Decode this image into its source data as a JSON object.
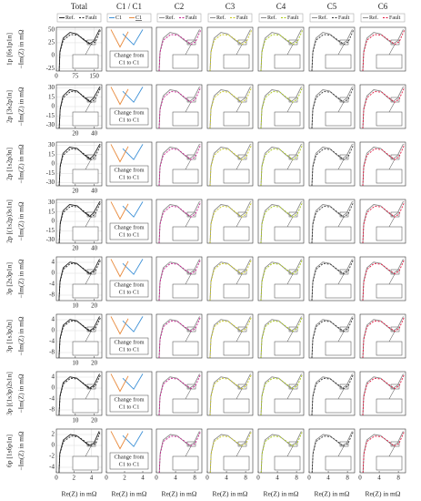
{
  "columns": [
    "Total",
    "C1 / C1",
    "C2",
    "C3",
    "C4",
    "C5",
    "C6"
  ],
  "legend": {
    "ref": "Ref.",
    "fault": "Fault",
    "c1": "C1",
    "c1_new": "C1"
  },
  "colors": {
    "total": "#222222",
    "ref": "#8a8a8a",
    "c1": "#3a8fd6",
    "c1_new": "#e8893a",
    "ci": [
      "#c41e8c",
      "#c8c81e",
      "#a8c814",
      "#333333",
      "#e0143c"
    ]
  },
  "x_label": "Re(Z) in mΩ",
  "y_label": "−Im(Z) in mΩ",
  "annotation": [
    "Change from",
    "C1 to C1"
  ],
  "c1": {
    "xlim": [
      0,
      5
    ],
    "ylim": [
      -5,
      5
    ],
    "xticks": [
      0,
      2,
      4
    ],
    "old": {
      "x": [
        1.8,
        3,
        4
      ],
      "y": [
        3.5,
        1,
        4.5
      ]
    },
    "new": {
      "x": [
        0.5,
        1.5,
        2.4
      ],
      "y": [
        4.5,
        0.5,
        4
      ]
    }
  },
  "rows": [
    {
      "label": "1p [6s1p1n]",
      "total": {
        "xlim": [
          0,
          180
        ],
        "ylim": [
          -30,
          55
        ],
        "xticks": [
          0,
          75,
          150
        ],
        "yticks": [
          50,
          25,
          0,
          -25
        ],
        "ref": {
          "x": [
            11,
            14,
            27,
            54,
            81,
            108,
            130,
            148,
            171
          ],
          "y": [
            -30,
            8,
            34,
            45,
            42,
            31,
            23,
            28,
            51
          ]
        },
        "fault": {
          "x": [
            11,
            14,
            27,
            56,
            85,
            114,
            137,
            155,
            175
          ],
          "y": [
            -30,
            6,
            30,
            41,
            40,
            30,
            22,
            27,
            50
          ]
        }
      },
      "ci": {
        "xlim": [
          0,
          40
        ],
        "ylim": [
          -30,
          55
        ],
        "ref": {
          "x": [
            2.4,
            3.2,
            6,
            12,
            18,
            24,
            28.8,
            32.8,
            38
          ],
          "y": [
            -30,
            8,
            34,
            45,
            42,
            31,
            23,
            28,
            51
          ]
        },
        "fault": {
          "x": [
            2.4,
            3.2,
            6,
            12.5,
            19,
            25.5,
            30.5,
            34.5,
            39
          ],
          "y": [
            -30,
            6,
            30,
            41,
            40,
            30,
            22,
            27,
            50
          ]
        }
      }
    },
    {
      "label": "2p [3s2p1n]",
      "total": {
        "xlim": [
          0,
          48
        ],
        "ylim": [
          -35,
          35
        ],
        "xticks": [
          20,
          40
        ],
        "yticks": [
          30,
          15,
          0,
          -15,
          -30
        ],
        "ref": {
          "x": [
            3,
            4,
            7,
            14,
            22,
            29,
            35,
            39,
            46
          ],
          "y": [
            -35,
            -3,
            17,
            27,
            25,
            15,
            8,
            13,
            32
          ]
        },
        "fault": {
          "x": [
            3,
            4,
            7,
            15,
            23,
            31,
            37,
            41,
            47
          ],
          "y": [
            -35,
            -5,
            14,
            24,
            23,
            14,
            7,
            12,
            31
          ]
        }
      },
      "ci": {
        "xlim": [
          0,
          20
        ],
        "ylim": [
          -35,
          35
        ],
        "ref": {
          "x": [
            1.2,
            1.6,
            3,
            6,
            9,
            12,
            14.4,
            16.4,
            19
          ],
          "y": [
            -35,
            -3,
            17,
            27,
            25,
            15,
            8,
            13,
            32
          ]
        },
        "fault": {
          "x": [
            1.2,
            1.6,
            3,
            6.3,
            9.5,
            12.7,
            15.2,
            17.2,
            19.5
          ],
          "y": [
            -35,
            -5,
            14,
            24,
            23,
            14,
            7,
            12,
            31
          ]
        }
      }
    },
    {
      "label": "2p [1s2p3n]",
      "total": {
        "xlim": [
          0,
          48
        ],
        "ylim": [
          -35,
          35
        ],
        "xticks": [
          20,
          40
        ],
        "yticks": [
          30,
          15,
          0,
          -15,
          -30
        ],
        "ref": {
          "x": [
            3,
            4,
            7,
            14,
            22,
            29,
            35,
            39,
            46
          ],
          "y": [
            -35,
            -3,
            17,
            27,
            25,
            15,
            8,
            13,
            32
          ]
        },
        "fault": {
          "x": [
            3,
            4,
            7,
            15,
            23,
            31,
            37,
            41,
            47
          ],
          "y": [
            -35,
            -5,
            14,
            24,
            23,
            14,
            7,
            12,
            31
          ]
        }
      },
      "ci": {
        "xlim": [
          0,
          20
        ],
        "ylim": [
          -35,
          35
        ],
        "ref": {
          "x": [
            1.2,
            1.6,
            3,
            6,
            9,
            12,
            14.4,
            16.4,
            19
          ],
          "y": [
            -35,
            -3,
            17,
            27,
            25,
            15,
            8,
            13,
            32
          ]
        },
        "fault": {
          "x": [
            1.2,
            1.6,
            3,
            6.3,
            9.5,
            12.7,
            15.2,
            17.2,
            19.5
          ],
          "y": [
            -35,
            -5,
            14,
            24,
            23,
            14,
            7,
            12,
            31
          ]
        }
      }
    },
    {
      "label": "2p [(1s2p)3s1n]",
      "total": {
        "xlim": [
          0,
          48
        ],
        "ylim": [
          -35,
          35
        ],
        "xticks": [
          20,
          40
        ],
        "yticks": [
          30,
          15,
          0,
          -15,
          -30
        ],
        "ref": {
          "x": [
            3,
            4,
            7,
            14,
            22,
            29,
            35,
            39,
            46
          ],
          "y": [
            -35,
            -3,
            17,
            27,
            25,
            15,
            8,
            13,
            32
          ]
        },
        "fault": {
          "x": [
            3,
            4,
            7,
            15,
            23,
            31,
            37,
            41,
            47
          ],
          "y": [
            -35,
            -5,
            14,
            24,
            23,
            14,
            7,
            12,
            31
          ]
        }
      },
      "ci": {
        "xlim": [
          0,
          20
        ],
        "ylim": [
          -35,
          35
        ],
        "ref": {
          "x": [
            1.2,
            1.6,
            3,
            6,
            9,
            12,
            14.4,
            16.4,
            19
          ],
          "y": [
            -35,
            -3,
            17,
            27,
            25,
            15,
            8,
            13,
            32
          ]
        },
        "fault": {
          "x": [
            1.2,
            1.6,
            3,
            6.3,
            9.5,
            12.7,
            15.2,
            17.2,
            19.5
          ],
          "y": [
            -35,
            -5,
            14,
            24,
            23,
            14,
            7,
            12,
            31
          ]
        }
      }
    },
    {
      "label": "3p [2s3p1n]",
      "total": {
        "xlim": [
          0,
          24
        ],
        "ylim": [
          -10,
          6
        ],
        "xticks": [
          10,
          20
        ],
        "yticks": [
          4,
          0,
          -4,
          -8
        ],
        "ref": {
          "x": [
            1.4,
            1.9,
            3.6,
            7.2,
            10.8,
            14.4,
            17.3,
            19.7,
            22.8
          ],
          "y": [
            -10,
            -2.8,
            2,
            4.1,
            3.6,
            1.5,
            -0.1,
            0.9,
            5.2
          ]
        },
        "fault": {
          "x": [
            1.4,
            1.9,
            3.6,
            7.5,
            11.3,
            15.1,
            18.1,
            20.6,
            23.4
          ],
          "y": [
            -10,
            -3.3,
            1.4,
            3.6,
            3.3,
            1.3,
            -0.2,
            0.8,
            5
          ]
        }
      },
      "ci": {
        "xlim": [
          0,
          10
        ],
        "ylim": [
          -10,
          6
        ],
        "ref": {
          "x": [
            0.6,
            0.8,
            1.5,
            3,
            4.5,
            6,
            7.2,
            8.2,
            9.5
          ],
          "y": [
            -10,
            -2.8,
            2,
            4.1,
            3.6,
            1.5,
            -0.1,
            0.9,
            5.2
          ]
        },
        "fault": {
          "x": [
            0.6,
            0.8,
            1.5,
            3.1,
            4.7,
            6.3,
            7.6,
            8.6,
            9.7
          ],
          "y": [
            -10,
            -3.3,
            1.4,
            3.6,
            3.3,
            1.3,
            -0.2,
            0.8,
            5
          ]
        }
      }
    },
    {
      "label": "3p [1s3p2n]",
      "total": {
        "xlim": [
          0,
          24
        ],
        "ylim": [
          -10,
          6
        ],
        "xticks": [
          10,
          20
        ],
        "yticks": [
          4,
          0,
          -4,
          -8
        ],
        "ref": {
          "x": [
            1.4,
            1.9,
            3.6,
            7.2,
            10.8,
            14.4,
            17.3,
            19.7,
            22.8
          ],
          "y": [
            -10,
            -2.8,
            2,
            4.1,
            3.6,
            1.5,
            -0.1,
            0.9,
            5.2
          ]
        },
        "fault": {
          "x": [
            1.4,
            1.9,
            3.6,
            7.5,
            11.3,
            15.1,
            18.1,
            20.6,
            23.4
          ],
          "y": [
            -10,
            -3.3,
            1.4,
            3.6,
            3.3,
            1.3,
            -0.2,
            0.8,
            5
          ]
        }
      },
      "ci": {
        "xlim": [
          0,
          10
        ],
        "ylim": [
          -10,
          6
        ],
        "ref": {
          "x": [
            0.6,
            0.8,
            1.5,
            3,
            4.5,
            6,
            7.2,
            8.2,
            9.5
          ],
          "y": [
            -10,
            -2.8,
            2,
            4.1,
            3.6,
            1.5,
            -0.1,
            0.9,
            5.2
          ]
        },
        "fault": {
          "x": [
            0.6,
            0.8,
            1.5,
            3.1,
            4.7,
            6.3,
            7.6,
            8.6,
            9.7
          ],
          "y": [
            -10,
            -3.3,
            1.4,
            3.6,
            3.3,
            1.3,
            -0.2,
            0.8,
            5
          ]
        }
      }
    },
    {
      "label": "3p [(1s3p)2s1n]",
      "total": {
        "xlim": [
          0,
          24
        ],
        "ylim": [
          -10,
          6
        ],
        "xticks": [
          10,
          20
        ],
        "yticks": [
          4,
          0,
          -4,
          -8
        ],
        "ref": {
          "x": [
            1.4,
            1.9,
            3.6,
            7.2,
            10.8,
            14.4,
            17.3,
            19.7,
            22.8
          ],
          "y": [
            -10,
            -2.8,
            2,
            4.1,
            3.6,
            1.5,
            -0.1,
            0.9,
            5.2
          ]
        },
        "fault": {
          "x": [
            1.4,
            1.9,
            3.6,
            7.5,
            11.3,
            15.1,
            18.1,
            20.6,
            23.4
          ],
          "y": [
            -10,
            -3.3,
            1.4,
            3.6,
            3.3,
            1.3,
            -0.2,
            0.8,
            5
          ]
        }
      },
      "ci": {
        "xlim": [
          0,
          10
        ],
        "ylim": [
          -10,
          6
        ],
        "ref": {
          "x": [
            0.6,
            0.8,
            1.5,
            3,
            4.5,
            6,
            7.2,
            8.2,
            9.5
          ],
          "y": [
            -10,
            -2.8,
            2,
            4.1,
            3.6,
            1.5,
            -0.1,
            0.9,
            5.2
          ]
        },
        "fault": {
          "x": [
            0.6,
            0.8,
            1.5,
            3.1,
            4.7,
            6.3,
            7.6,
            8.6,
            9.7
          ],
          "y": [
            -10,
            -3.3,
            1.4,
            3.6,
            3.3,
            1.3,
            -0.2,
            0.8,
            5
          ]
        }
      }
    },
    {
      "label": "6p [1s6p1n]",
      "total": {
        "xlim": [
          0,
          5.2
        ],
        "ylim": [
          -5,
          3
        ],
        "xticks": [
          0,
          2,
          4
        ],
        "yticks": [
          2,
          0,
          -2,
          -4
        ],
        "ref": {
          "x": [
            0.3,
            0.4,
            0.8,
            1.6,
            2.3,
            3.1,
            3.7,
            4.3,
            4.9
          ],
          "y": [
            -5,
            -1.4,
            1,
            2,
            1.8,
            0.8,
            0,
            0.4,
            2.6
          ]
        },
        "fault": {
          "x": [
            0.3,
            0.4,
            0.8,
            1.7,
            2.5,
            3.3,
            3.9,
            4.5,
            5.0
          ],
          "y": [
            -5,
            -1.6,
            0.7,
            1.7,
            1.6,
            0.7,
            -0.1,
            0.3,
            2.5
          ]
        }
      },
      "ci": {
        "xlim": [
          0,
          9.5
        ],
        "ylim": [
          -5,
          3
        ],
        "xticks": [
          0,
          4,
          8
        ],
        "ref": {
          "x": [
            0.6,
            0.8,
            1.4,
            2.9,
            4.3,
            5.7,
            6.8,
            7.8,
            9
          ],
          "y": [
            -5,
            -1.4,
            1,
            2,
            1.8,
            0.8,
            0,
            0.4,
            2.6
          ]
        },
        "fault": {
          "x": [
            0.6,
            0.8,
            1.4,
            3,
            4.5,
            6,
            7.1,
            8.1,
            9.2
          ],
          "y": [
            -5,
            -1.6,
            0.7,
            1.7,
            1.6,
            0.7,
            -0.1,
            0.3,
            2.5
          ]
        }
      }
    }
  ]
}
